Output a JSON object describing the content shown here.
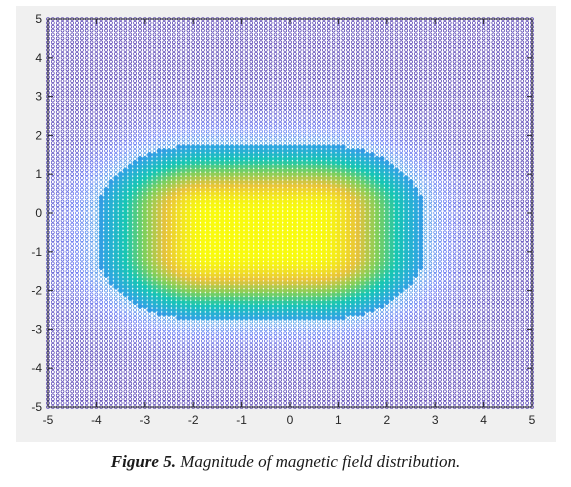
{
  "caption": {
    "label": "Figure 5.",
    "text": "Magnitude of magnetic field distribution."
  },
  "chart_data": {
    "type": "scatter",
    "title": "",
    "xlabel": "",
    "ylabel": "",
    "xlim": [
      -5,
      5
    ],
    "ylim": [
      -5,
      5
    ],
    "xticks": [
      -5,
      -4,
      -3,
      -2,
      -1,
      0,
      1,
      2,
      3,
      4,
      5
    ],
    "yticks": [
      -5,
      -4,
      -3,
      -2,
      -1,
      0,
      1,
      2,
      3,
      4,
      5
    ],
    "grid": false,
    "marker": "circle",
    "grid_step": 0.1,
    "colormap": "parula",
    "colormap_stops": [
      "#3e26a8",
      "#4a5ef1",
      "#2ea7e0",
      "#16c6b4",
      "#7fcf5b",
      "#e8c23a",
      "#f9fb0e"
    ],
    "peak_center": [
      -0.6,
      -0.5
    ],
    "peak_extent": {
      "x_halfwidth": 1.1,
      "y_halfwidth": 0.55
    },
    "field_decay": {
      "x": 2.6,
      "y": 2.0
    }
  }
}
